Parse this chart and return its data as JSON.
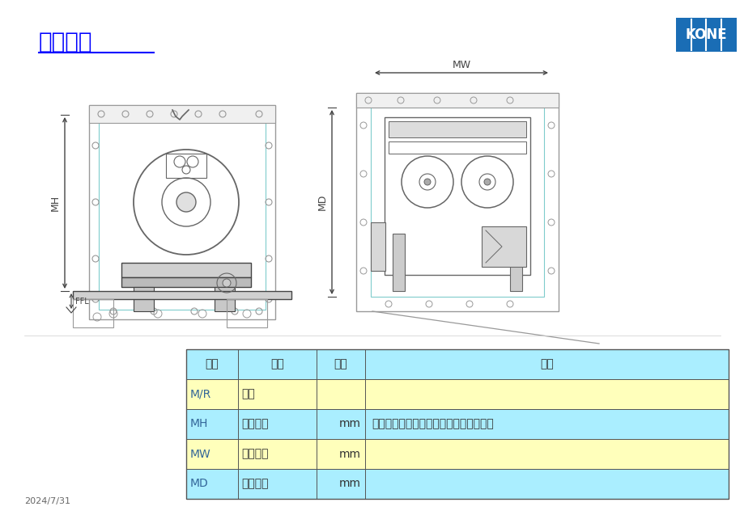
{
  "title": "现场勘查",
  "title_color": "#0000FF",
  "title_fontsize": 20,
  "bg_color": "#FFFFFF",
  "date_text": "2024/7/31",
  "table_header_bg": "#AAEEFF",
  "table_row_yellow": "#FFFFBB",
  "table_row_cyan": "#AAEEFF",
  "table_border": "#555555",
  "table_data": [
    [
      "缩写",
      "含义",
      "单位",
      "定义"
    ],
    [
      "M/R",
      "机房",
      "",
      ""
    ],
    [
      "MH",
      "机房高度",
      "mm",
      "机房地面至机房楼板的梁或吸钉的净高度"
    ],
    [
      "MW",
      "机房宽度",
      "mm",
      ""
    ],
    [
      "MD",
      "机房深度",
      "mm",
      ""
    ]
  ],
  "diag_lc": "#444444",
  "diag_dc": "#666666",
  "diag_thin": "#999999",
  "cyan_border": "#7FCCCC",
  "kone_blue": "#1A6DB5"
}
